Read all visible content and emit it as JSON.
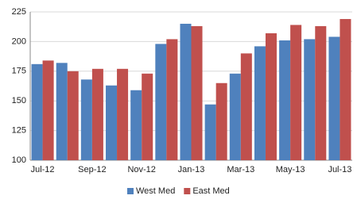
{
  "chart_data": {
    "type": "bar",
    "categories": [
      "Jul-12",
      null,
      "Sep-12",
      null,
      "Nov-12",
      null,
      "Jan-13",
      null,
      "Mar-13",
      null,
      "May-13",
      null,
      "Jul-13"
    ],
    "series": [
      {
        "name": "West Med",
        "color": "#4f81bd",
        "values": [
          181,
          182,
          168,
          163,
          159,
          198,
          215,
          147,
          173,
          196,
          201,
          202,
          204
        ]
      },
      {
        "name": "East Med",
        "color": "#c0504d",
        "values": [
          184,
          175,
          177,
          177,
          173,
          202,
          213,
          165,
          190,
          207,
          214,
          213,
          219
        ]
      }
    ],
    "ylim": [
      100,
      225
    ],
    "yticks": [
      100,
      125,
      150,
      175,
      200,
      225
    ],
    "grid": true,
    "legend": "bottom"
  }
}
